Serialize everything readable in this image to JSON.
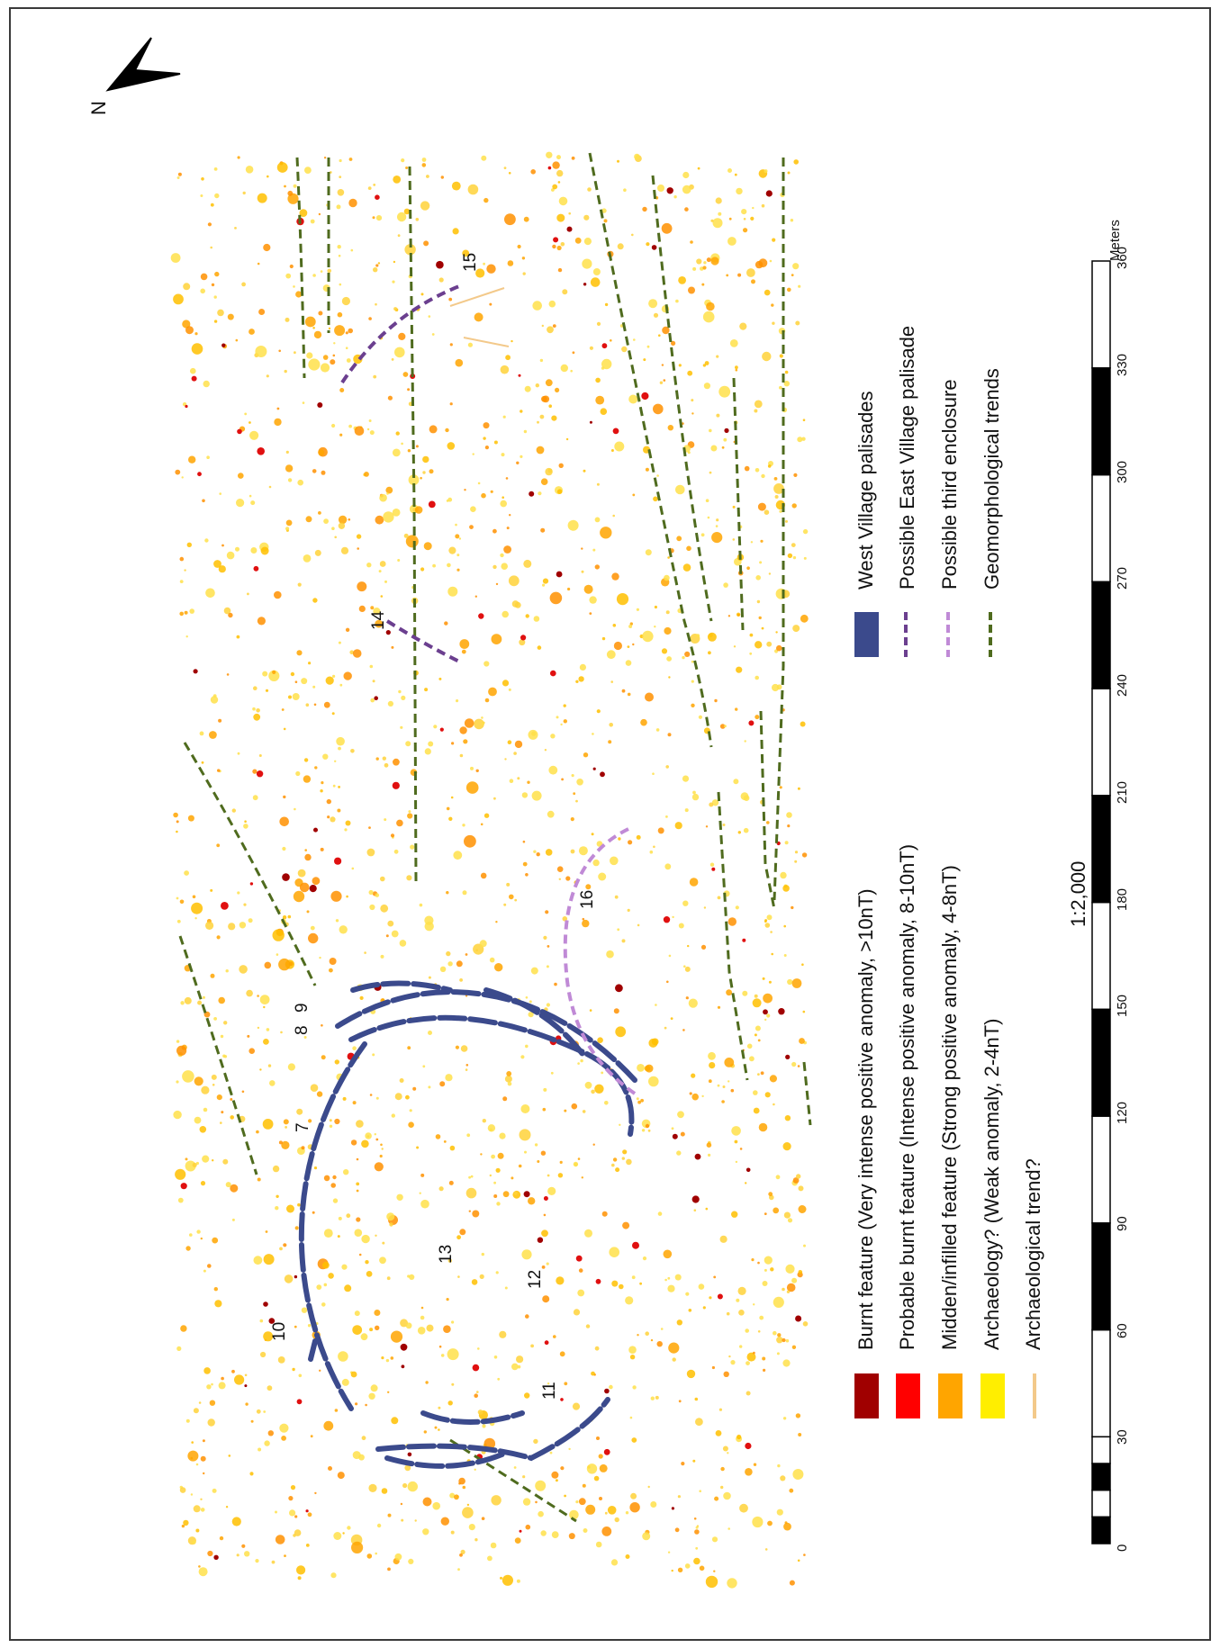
{
  "map": {
    "north_label": "N",
    "scale_text": "1:2,000",
    "scale_unit": "Meters",
    "scale_ticks": [
      "0",
      "30",
      "60",
      "90",
      "120",
      "150",
      "180",
      "210",
      "240",
      "270",
      "300",
      "330",
      "360"
    ],
    "feature_labels": [
      "7",
      "8",
      "9",
      "10",
      "11",
      "12",
      "13",
      "14",
      "15",
      "16"
    ]
  },
  "legend": {
    "anomalies": [
      {
        "label": "Burnt feature (Very intense positive anomaly, >10nT)",
        "color": "#a00000"
      },
      {
        "label": "Probable burnt feature (Intense positive anomaly, 8-10nT)",
        "color": "#ff0000"
      },
      {
        "label": "Midden/infilled feature (Strong positive anomaly, 4-8nT)",
        "color": "#ffa500"
      },
      {
        "label": "Archaeology? (Weak anomaly, 2-4nT)",
        "color": "#ffee00"
      },
      {
        "label": "Archaeological trend?",
        "color": "#f3c98a"
      }
    ],
    "lines": [
      {
        "label": "West Village palisades",
        "color": "#3b4a8c"
      },
      {
        "label": "Possible East Village palisade",
        "color": "#6b3f8f"
      },
      {
        "label": "Possible third enclosure",
        "color": "#c08ad6"
      },
      {
        "label": "Geomorphological trends",
        "color": "#4f6b1e"
      }
    ]
  }
}
